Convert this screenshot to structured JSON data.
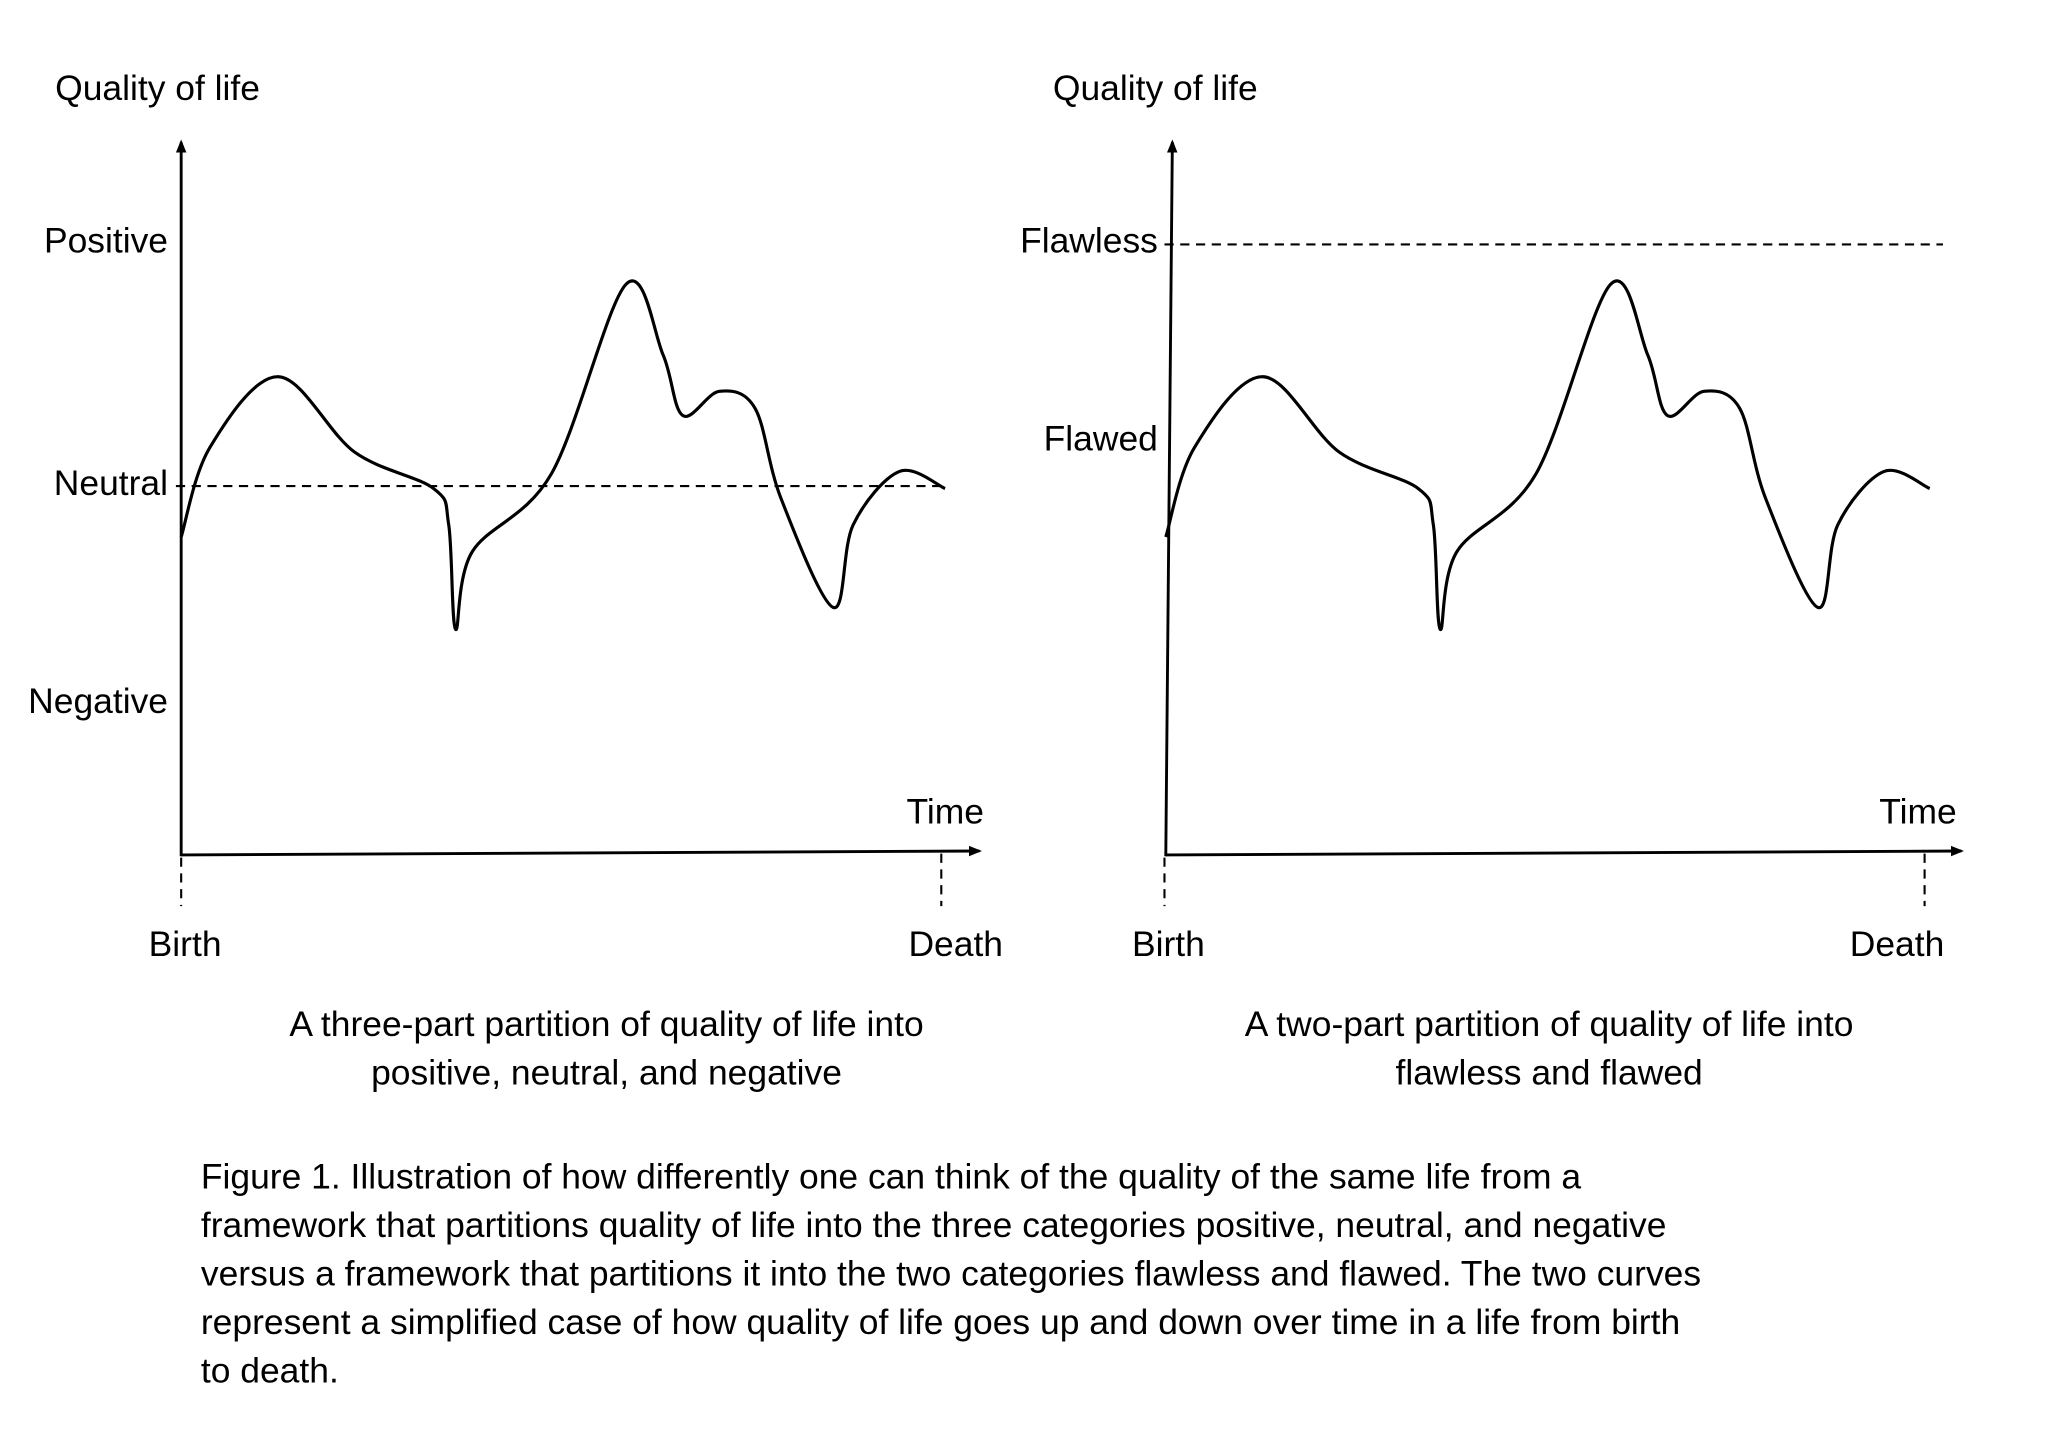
{
  "left_panel": {
    "y_axis_title": "Quality of life",
    "levels": [
      "Positive",
      "Neutral",
      "Negative"
    ],
    "x_axis_title": "Time",
    "start_label": "Birth",
    "end_label": "Death",
    "caption_lines": [
      "A three-part partition of quality of life into",
      "positive, neutral, and negative"
    ]
  },
  "right_panel": {
    "y_axis_title": "Quality of life",
    "levels": [
      "Flawless",
      "Flawed"
    ],
    "x_axis_title": "Time",
    "start_label": "Birth",
    "end_label": "Death",
    "caption_lines": [
      "A two-part partition of quality of life into",
      "flawless and flawed"
    ]
  },
  "figure_caption_lines": [
    "Figure 1. Illustration of how differently one can think of the quality of the same life from a",
    "framework that partitions quality of life into the three categories positive, neutral, and negative",
    "versus a framework that partitions it into the two categories flawless and flawed. The two curves",
    "represent a simplified case of how quality of life goes up and down over time in a life from birth",
    "to death."
  ],
  "chart_data": {
    "type": "line",
    "xlabel": "Time",
    "ylabel": "Quality of life",
    "x_range": [
      0,
      1
    ],
    "note": "x = fraction of lifetime (Birth=0, Death=1); y relative to Neutral=0, Positive=1",
    "curve": [
      [
        0,
        -0.21
      ],
      [
        0.038,
        0.16
      ],
      [
        0.128,
        0.45
      ],
      [
        0.228,
        0.14
      ],
      [
        0.332,
        -0.01
      ],
      [
        0.352,
        -0.16
      ],
      [
        0.361,
        -0.59
      ],
      [
        0.383,
        -0.27
      ],
      [
        0.487,
        0.05
      ],
      [
        0.585,
        0.83
      ],
      [
        0.634,
        0.54
      ],
      [
        0.66,
        0.29
      ],
      [
        0.708,
        0.39
      ],
      [
        0.755,
        0.32
      ],
      [
        0.789,
        -0.05
      ],
      [
        0.858,
        -0.5
      ],
      [
        0.884,
        -0.16
      ],
      [
        0.945,
        0.06
      ],
      [
        1.005,
        -0.01
      ]
    ],
    "reference_levels": {
      "Positive": 1,
      "Neutral": 0,
      "Negative": -0.88,
      "Flawless": 1,
      "Flawed": 0.2
    }
  }
}
